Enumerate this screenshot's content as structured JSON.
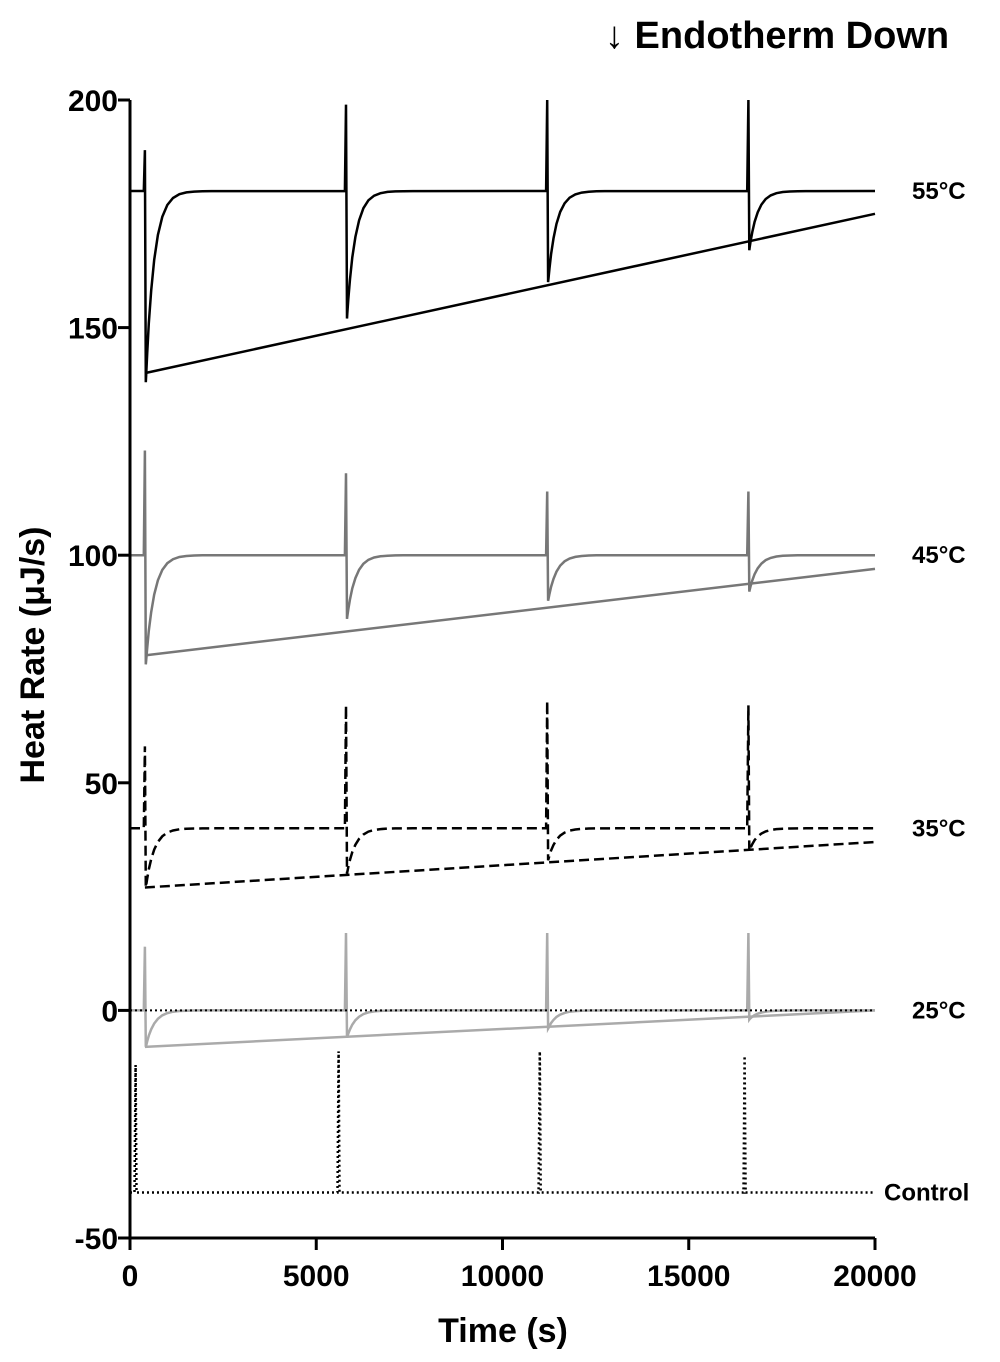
{
  "chart_data": {
    "type": "line",
    "title": "",
    "annotation": "↓ Endotherm Down",
    "xlabel": "Time (s)",
    "ylabel": "Heat Rate (μJ/s)",
    "xlim": [
      0,
      20000
    ],
    "ylim": [
      -50,
      200
    ],
    "xticks": [
      0,
      5000,
      10000,
      15000,
      20000
    ],
    "yticks": [
      -50,
      0,
      50,
      100,
      150,
      200
    ],
    "xtick_labels": [
      "0",
      "5000",
      "10000",
      "15000",
      "20000"
    ],
    "ytick_labels": [
      "-50",
      "0",
      "50",
      "100",
      "150",
      "200"
    ],
    "grid": false,
    "legend": "none",
    "injection_times": [
      400,
      5800,
      11200,
      16600
    ],
    "series": [
      {
        "name": "55°C",
        "color": "#000000",
        "style": "solid",
        "baseline": 180,
        "spike_peaks": [
          189,
          199,
          200,
          200
        ],
        "spike_troughs": [
          138,
          152,
          160,
          167
        ],
        "trend_line": {
          "x": [
            400,
            20000
          ],
          "y": [
            140,
            175
          ]
        }
      },
      {
        "name": "45°C",
        "color": "#777777",
        "style": "solid",
        "baseline": 100,
        "spike_peaks": [
          123,
          118,
          114,
          114
        ],
        "spike_troughs": [
          76,
          86,
          90,
          92
        ],
        "trend_line": {
          "x": [
            400,
            20000
          ],
          "y": [
            78,
            97
          ]
        }
      },
      {
        "name": "35°C",
        "color": "#000000",
        "style": "dashed",
        "baseline": 40,
        "spike_peaks": [
          58,
          67,
          68,
          67
        ],
        "spike_troughs": [
          27,
          30,
          33,
          35
        ],
        "trend_line": {
          "x": [
            400,
            20000
          ],
          "y": [
            27,
            37
          ]
        }
      },
      {
        "name": "25°C",
        "color": "#aaaaaa",
        "style": "solid",
        "baseline": 0,
        "spike_peaks": [
          14,
          17,
          17,
          17
        ],
        "spike_troughs": [
          -8,
          -6,
          -4,
          -2
        ],
        "trend_line": {
          "x": [
            400,
            20000
          ],
          "y": [
            -8,
            0
          ]
        }
      },
      {
        "name": "Control",
        "color": "#000000",
        "style": "dotted",
        "baseline": -40,
        "zero_line": 0,
        "injection_times": [
          150,
          5600,
          11000,
          16500
        ],
        "spike_peaks": [
          -12,
          -9,
          -9,
          -10
        ],
        "spike_troughs": [
          -40,
          -40,
          -40,
          -40
        ]
      }
    ]
  }
}
